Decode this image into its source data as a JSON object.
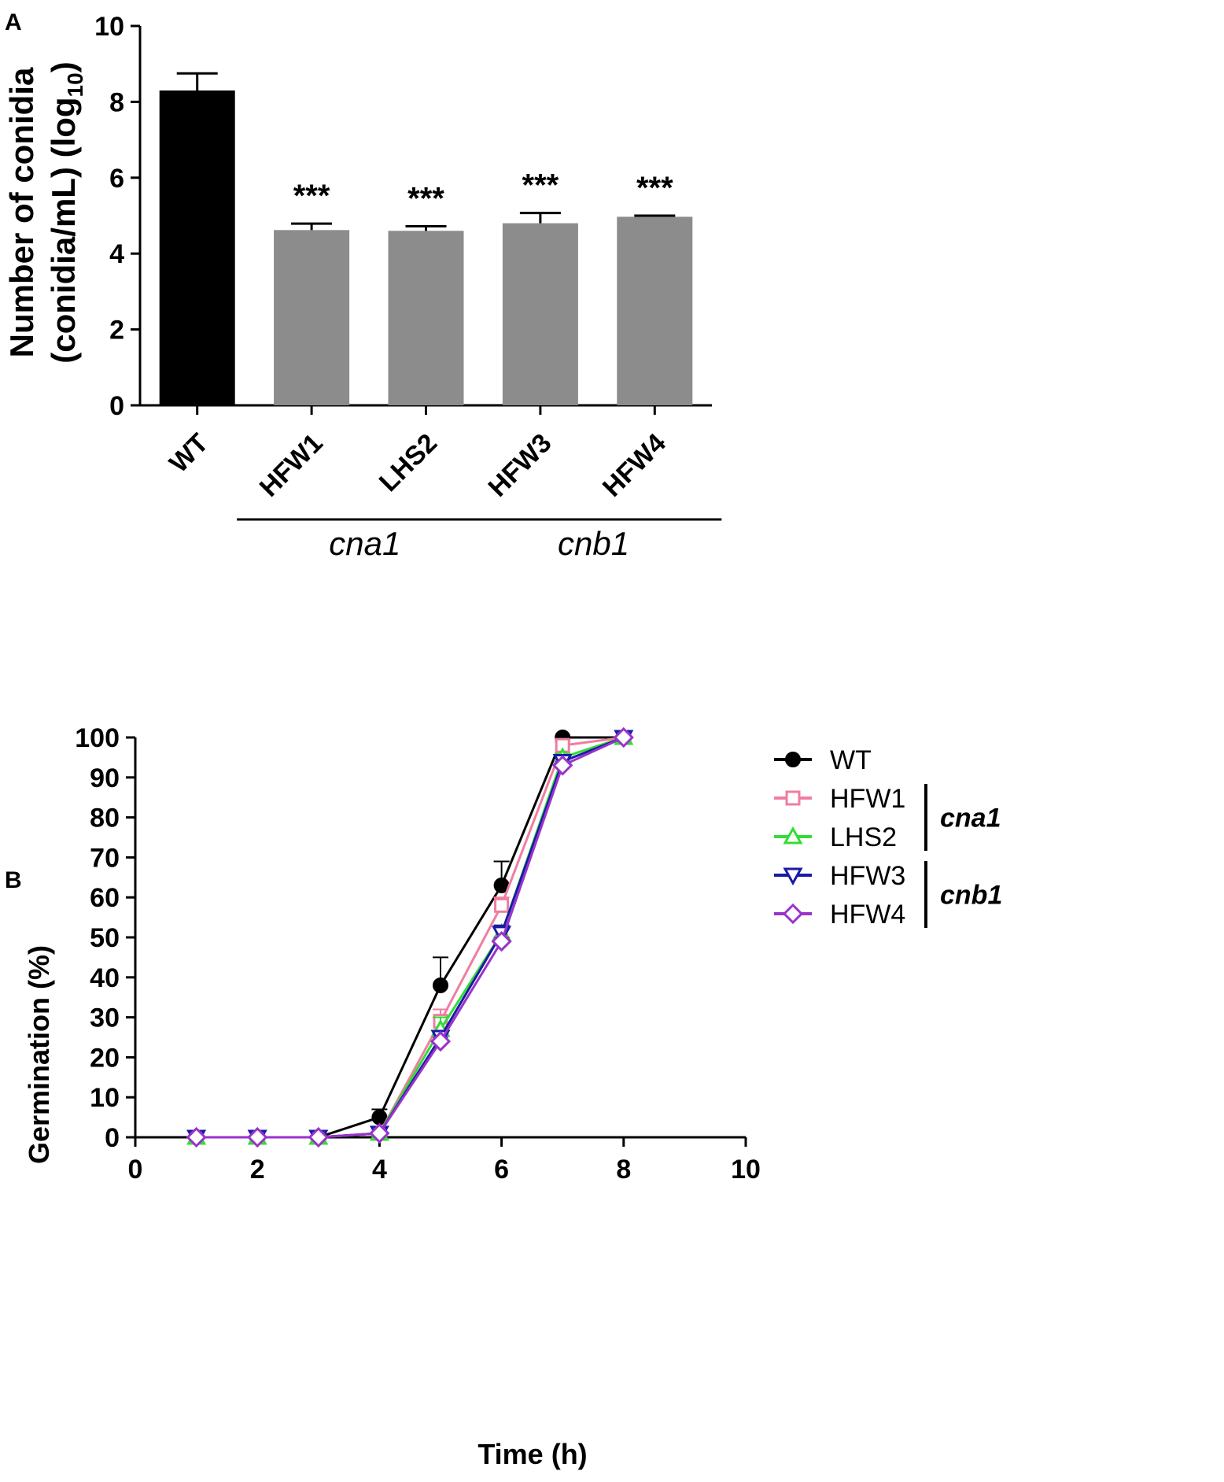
{
  "chart_data": [
    {
      "panel_label": "A",
      "type": "bar",
      "categories": [
        "WT",
        "HFW1",
        "LHS2",
        "HFW3",
        "HFW4"
      ],
      "values": [
        8.3,
        4.62,
        4.6,
        4.8,
        4.97
      ],
      "errors": [
        0.45,
        0.17,
        0.12,
        0.27,
        0.03
      ],
      "bar_colors": [
        "#000000",
        "#8c8c8c",
        "#8c8c8c",
        "#8c8c8c",
        "#8c8c8c"
      ],
      "significance": [
        "",
        "***",
        "***",
        "***",
        "***"
      ],
      "ylim": [
        0,
        10
      ],
      "yticks": [
        "0",
        "2",
        "4",
        "6",
        "8",
        "10"
      ],
      "ylabel_line1": "Number of conidia",
      "ylabel_line2_main": "(conidia/mL) (log",
      "ylabel_line2_sub": "10",
      "ylabel_line2_end": ")",
      "groups": [
        {
          "label": "cna1",
          "members": [
            "HFW1",
            "LHS2"
          ]
        },
        {
          "label": "cnb1",
          "members": [
            "HFW3",
            "HFW4"
          ]
        }
      ]
    },
    {
      "panel_label": "B",
      "type": "line",
      "xlabel": "Time (h)",
      "ylabel": "Germination (%)",
      "xlim": [
        0,
        10
      ],
      "ylim": [
        0,
        100
      ],
      "xticks": [
        "0",
        "2",
        "4",
        "6",
        "8",
        "10"
      ],
      "yticks": [
        "0",
        "10",
        "20",
        "30",
        "40",
        "50",
        "60",
        "70",
        "80",
        "90",
        "100"
      ],
      "x": [
        1,
        2,
        3,
        4,
        5,
        6,
        7,
        8
      ],
      "series": [
        {
          "name": "WT",
          "color": "#000000",
          "marker": "circle-filled",
          "values": [
            0,
            0,
            0,
            5,
            38,
            63,
            100,
            100
          ],
          "errors": [
            0,
            0,
            0,
            2,
            7,
            6,
            0,
            0
          ]
        },
        {
          "name": "HFW1",
          "color": "#ef7ea0",
          "marker": "square-open",
          "values": [
            0,
            0,
            0,
            1,
            29,
            58,
            98,
            100
          ],
          "errors": [
            0,
            0,
            0,
            0,
            3,
            2,
            1,
            0
          ]
        },
        {
          "name": "LHS2",
          "color": "#33dd33",
          "marker": "triangle-up-open",
          "values": [
            0,
            0,
            0,
            1,
            27,
            51,
            95,
            100
          ],
          "errors": [
            0,
            0,
            0,
            0,
            3,
            2,
            1,
            0
          ]
        },
        {
          "name": "HFW3",
          "color": "#1a1aa6",
          "marker": "triangle-down-open",
          "values": [
            0,
            0,
            0,
            1,
            25,
            51,
            94,
            100
          ],
          "errors": [
            0,
            0,
            0,
            0,
            1,
            2,
            1,
            0
          ]
        },
        {
          "name": "HFW4",
          "color": "#9933cc",
          "marker": "diamond-open",
          "values": [
            0,
            0,
            0,
            1,
            24,
            49,
            93,
            100
          ],
          "errors": [
            0,
            0,
            0,
            0,
            1,
            1,
            1,
            0
          ]
        }
      ],
      "legend_groups": [
        {
          "label": "cna1",
          "members": [
            "HFW1",
            "LHS2"
          ]
        },
        {
          "label": "cnb1",
          "members": [
            "HFW3",
            "HFW4"
          ]
        }
      ]
    }
  ]
}
